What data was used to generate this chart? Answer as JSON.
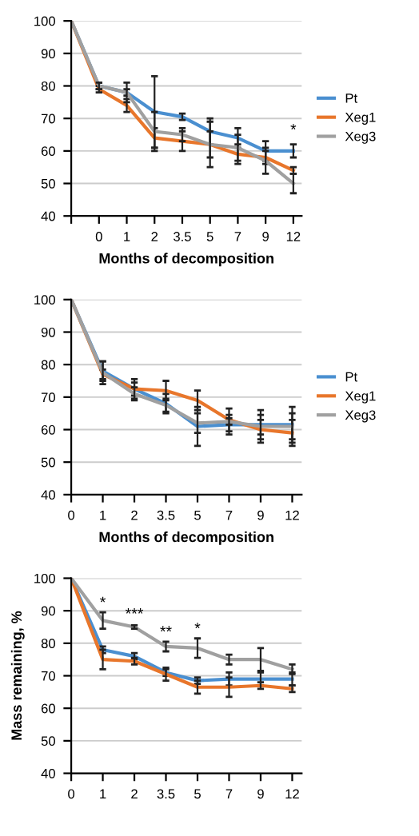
{
  "chart_data": [
    {
      "type": "line",
      "xlabel": "Months of decomposition",
      "categories": [
        null,
        "0",
        "1",
        "2",
        "3.5",
        "5",
        "7",
        "9",
        "12"
      ],
      "ylim": [
        40,
        100
      ],
      "yticks": [
        40,
        50,
        60,
        70,
        80,
        90,
        100
      ],
      "grid": "y",
      "legend": "right",
      "marker": "none",
      "annotations": [
        {
          "text": "*",
          "x": "12",
          "y": 64
        }
      ],
      "series": [
        {
          "name": "Pt",
          "color": "#4a8fd0",
          "values": [
            100,
            80,
            78,
            72,
            70.5,
            66,
            64,
            60,
            60
          ],
          "errors": [
            null,
            1,
            1,
            11,
            1,
            4,
            3,
            3,
            2
          ]
        },
        {
          "name": "Xeg1",
          "color": "#e8762b",
          "values": [
            100,
            79,
            74,
            64,
            63,
            62,
            59,
            58,
            54
          ],
          "errors": [
            null,
            1,
            2,
            3,
            3,
            4,
            3,
            2,
            1
          ]
        },
        {
          "name": "Xeg3",
          "color": "#a0a0a0",
          "values": [
            100,
            80,
            78,
            66,
            65,
            62,
            61,
            57,
            50
          ],
          "errors": [
            null,
            1,
            3,
            6,
            2,
            7,
            4,
            4,
            3
          ]
        }
      ]
    },
    {
      "type": "line",
      "xlabel": "Months of decomposition",
      "categories": [
        "0",
        "1",
        "2",
        "3.5",
        "5",
        "7",
        "9",
        "12"
      ],
      "ylim": [
        40,
        100
      ],
      "yticks": [
        40,
        50,
        60,
        70,
        80,
        90,
        100
      ],
      "grid": "y",
      "legend": "right",
      "marker": "none",
      "series": [
        {
          "name": "Pt",
          "color": "#4a8fd0",
          "values": [
            100,
            78,
            72.5,
            68,
            61,
            61.5,
            61.5,
            61.5
          ],
          "errors": [
            null,
            3,
            3,
            3,
            6,
            3,
            3,
            5.5
          ]
        },
        {
          "name": "Xeg1",
          "color": "#e8762b",
          "values": [
            100,
            77,
            72.5,
            72,
            69,
            63,
            60,
            59
          ],
          "errors": [
            null,
            1.5,
            2,
            3,
            3,
            3.5,
            3,
            4
          ]
        },
        {
          "name": "Xeg3",
          "color": "#a0a0a0",
          "values": [
            100,
            77.5,
            71,
            67.5,
            62,
            62.5,
            61,
            61
          ],
          "errors": [
            null,
            3.5,
            2,
            2,
            3,
            1,
            5,
            4
          ]
        }
      ]
    },
    {
      "type": "line",
      "ylabel": "Mass remaining, %",
      "categories": [
        "0",
        "1",
        "2",
        "3.5",
        "5",
        "7",
        "9",
        "12"
      ],
      "ylim": [
        40,
        100
      ],
      "yticks": [
        40,
        50,
        60,
        70,
        80,
        90,
        100
      ],
      "grid": "y",
      "marker": "none",
      "annotations": [
        {
          "text": "*",
          "x": "1",
          "y": 90
        },
        {
          "text": "***",
          "x": "2",
          "y": 86.5
        },
        {
          "text": "**",
          "x": "3.5",
          "y": 81
        },
        {
          "text": "*",
          "x": "5",
          "y": 82
        }
      ],
      "series": [
        {
          "color": "#4a8fd0",
          "values": [
            100,
            78,
            76,
            71,
            68.5,
            69,
            69,
            69
          ],
          "errors": [
            null,
            1,
            1,
            1,
            1,
            2,
            2,
            2
          ]
        },
        {
          "color": "#e8762b",
          "values": [
            100,
            75,
            74.5,
            70.5,
            66.5,
            66.5,
            67,
            66
          ],
          "errors": [
            null,
            3,
            1,
            2,
            2,
            3,
            1,
            1
          ]
        },
        {
          "color": "#a0a0a0",
          "values": [
            100,
            87,
            85,
            79,
            78.5,
            75,
            75,
            72
          ],
          "errors": [
            null,
            2.5,
            0.5,
            1.5,
            3,
            1.5,
            3.5,
            1.5
          ]
        }
      ]
    }
  ]
}
